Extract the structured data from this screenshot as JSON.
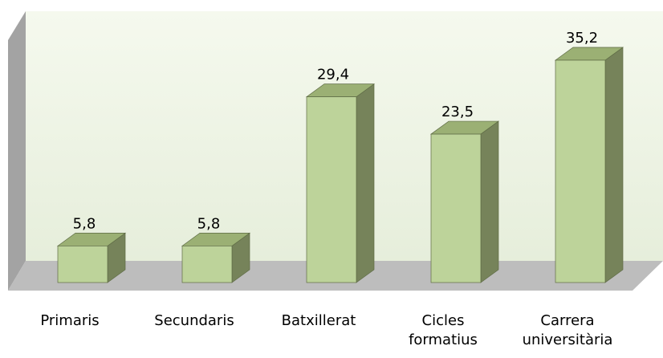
{
  "chart_data": {
    "type": "bar3d",
    "categories": [
      "Primaris",
      "Secundaris",
      "Batxillerat",
      "Cicles formatius",
      "Carrera universitària"
    ],
    "values": [
      5.8,
      5.8,
      29.4,
      23.5,
      35.2
    ],
    "value_labels": [
      "5,8",
      "5,8",
      "29,4",
      "23,5",
      "35,2"
    ],
    "color": "#bdd39a"
  }
}
